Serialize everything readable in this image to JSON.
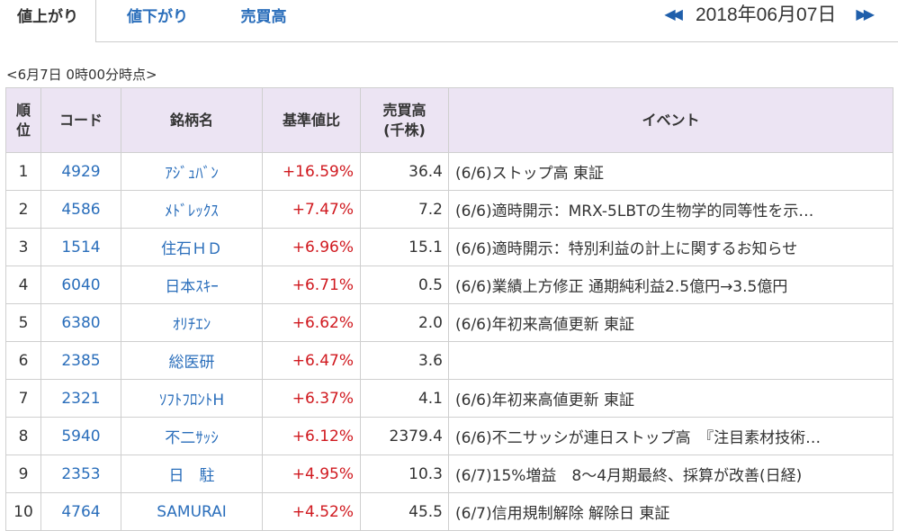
{
  "tabs": [
    "値上がり",
    "値下がり",
    "売買高"
  ],
  "date": "2018年06月07日",
  "nav": {
    "prev_icon": "double-left-arrow",
    "next_icon": "double-right-arrow"
  },
  "timestamp": "<6月7日 0時00分時点>",
  "columns": {
    "rank_1": "順",
    "rank_2": "位",
    "code": "コード",
    "name": "銘柄名",
    "ratio": "基準値比",
    "volume_1": "売買高",
    "volume_2": "(千株)",
    "event": "イベント"
  },
  "rows": [
    {
      "rank": "1",
      "code": "4929",
      "name": "ｱｼﾞｭﾊﾞﾝ",
      "ratio": "+16.59%",
      "volume": "36.4",
      "event": "(6/6)ストップ高 東証"
    },
    {
      "rank": "2",
      "code": "4586",
      "name": "ﾒﾄﾞﾚｯｸｽ",
      "ratio": "+7.47%",
      "volume": "7.2",
      "event": "(6/6)適時開示：MRX-5LBTの生物学的同等性を示…"
    },
    {
      "rank": "3",
      "code": "1514",
      "name": "住石ＨＤ",
      "ratio": "+6.96%",
      "volume": "15.1",
      "event": "(6/6)適時開示：特別利益の計上に関するお知らせ"
    },
    {
      "rank": "4",
      "code": "6040",
      "name": "日本ｽｷｰ",
      "ratio": "+6.71%",
      "volume": "0.5",
      "event": "(6/6)業績上方修正 通期純利益2.5億円→3.5億円"
    },
    {
      "rank": "5",
      "code": "6380",
      "name": "ｵﾘﾁｴﾝ",
      "ratio": "+6.62%",
      "volume": "2.0",
      "event": "(6/6)年初来高値更新 東証"
    },
    {
      "rank": "6",
      "code": "2385",
      "name": "総医研",
      "ratio": "+6.47%",
      "volume": "3.6",
      "event": ""
    },
    {
      "rank": "7",
      "code": "2321",
      "name": "ｿﾌﾄﾌﾛﾝﾄH",
      "ratio": "+6.37%",
      "volume": "4.1",
      "event": "(6/6)年初来高値更新 東証"
    },
    {
      "rank": "8",
      "code": "5940",
      "name": "不二ｻｯｼ",
      "ratio": "+6.12%",
      "volume": "2379.4",
      "event": "(6/6)不二サッシが連日ストップ高　『注目素材技術…"
    },
    {
      "rank": "9",
      "code": "2353",
      "name": "日　駐",
      "ratio": "+4.95%",
      "volume": "10.3",
      "event": "(6/7)15%増益　8～4月期最終、採算が改善(日経)"
    },
    {
      "rank": "10",
      "code": "4764",
      "name": "SAMURAI",
      "ratio": "+4.52%",
      "volume": "45.5",
      "event": "(6/7)信用規制解除 解除日 東証"
    }
  ],
  "colors": {
    "accent": "#2a6ebb",
    "positive": "#d0191f",
    "header_bg": "#ece4f3"
  }
}
